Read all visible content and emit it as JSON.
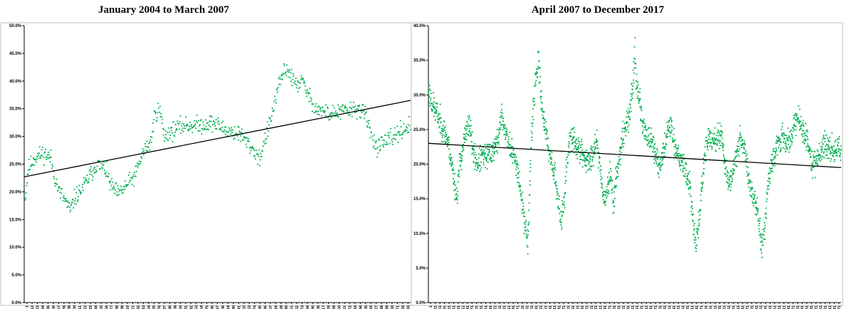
{
  "chart_data": [
    {
      "type": "scatter",
      "title": "January 2004 to March 2007",
      "point_color": "#00b050",
      "trendline_color": "#000000",
      "y_ticks": [
        "0.0%",
        "5.0%",
        "10.0%",
        "15.0%",
        "20.0%",
        "25.0%",
        "30.0%",
        "35.0%",
        "40.0%",
        "45.0%",
        "50.0%"
      ],
      "ylim": [
        0,
        50
      ],
      "grid": false,
      "x_count": 800,
      "x_ticks": [
        "1",
        "12",
        "23",
        "34",
        "45",
        "56",
        "67",
        "78",
        "89",
        "100",
        "111",
        "122",
        "133",
        "144",
        "155",
        "166",
        "177",
        "188",
        "199",
        "210",
        "221",
        "232",
        "243",
        "254",
        "265",
        "276",
        "287",
        "298",
        "309",
        "320",
        "331",
        "342",
        "353",
        "364",
        "375",
        "386",
        "397",
        "408",
        "419",
        "430",
        "441",
        "452",
        "463",
        "474",
        "485",
        "496",
        "507",
        "518",
        "529",
        "540",
        "551",
        "562",
        "573",
        "584",
        "595",
        "606",
        "617",
        "628",
        "639",
        "650",
        "661",
        "672",
        "683",
        "694",
        "705",
        "716",
        "727",
        "738",
        "749",
        "760",
        "771",
        "782",
        "793"
      ],
      "trendline": {
        "start": 22.7,
        "end": 36.5
      },
      "profile": [
        [
          0,
          20
        ],
        [
          3,
          19.2
        ],
        [
          8,
          24
        ],
        [
          20,
          26
        ],
        [
          40,
          27
        ],
        [
          55,
          26
        ],
        [
          62,
          23
        ],
        [
          72,
          20
        ],
        [
          85,
          18.5
        ],
        [
          95,
          16.5
        ],
        [
          105,
          19
        ],
        [
          115,
          20
        ],
        [
          130,
          22
        ],
        [
          150,
          25
        ],
        [
          168,
          24
        ],
        [
          180,
          21
        ],
        [
          195,
          19.5
        ],
        [
          210,
          21
        ],
        [
          230,
          23
        ],
        [
          245,
          27
        ],
        [
          262,
          29
        ],
        [
          270,
          34
        ],
        [
          280,
          35
        ],
        [
          290,
          30
        ],
        [
          305,
          31
        ],
        [
          330,
          32
        ],
        [
          360,
          32
        ],
        [
          390,
          32.5
        ],
        [
          420,
          31
        ],
        [
          445,
          30.5
        ],
        [
          470,
          28
        ],
        [
          487,
          26
        ],
        [
          500,
          30
        ],
        [
          510,
          33
        ],
        [
          520,
          37
        ],
        [
          530,
          40
        ],
        [
          538,
          42
        ],
        [
          548,
          42
        ],
        [
          555,
          40
        ],
        [
          565,
          39.5
        ],
        [
          575,
          40
        ],
        [
          590,
          37
        ],
        [
          605,
          35
        ],
        [
          630,
          34
        ],
        [
          660,
          34.5
        ],
        [
          690,
          35
        ],
        [
          705,
          34
        ],
        [
          715,
          31
        ],
        [
          730,
          28
        ],
        [
          750,
          29
        ],
        [
          770,
          30.5
        ],
        [
          800,
          32
        ]
      ],
      "noise": 1.1,
      "seed": 11
    },
    {
      "type": "scatter",
      "title": "April 2007 to December 2017",
      "point_color": "#00b050",
      "trendline_color": "#000000",
      "y_ticks": [
        "0.0%",
        "5.0%",
        "10.0%",
        "15.0%",
        "20.0%",
        "25.0%",
        "30.0%",
        "35.0%",
        "40.0%"
      ],
      "ylim": [
        0,
        40
      ],
      "grid": false,
      "x_count": 2700,
      "x_ticks": [
        "1",
        "31",
        "61",
        "91",
        "121",
        "151",
        "181",
        "211",
        "241",
        "271",
        "301",
        "331",
        "361",
        "391",
        "421",
        "451",
        "481",
        "511",
        "541",
        "571",
        "601",
        "631",
        "661",
        "691",
        "721",
        "751",
        "781",
        "811",
        "841",
        "871",
        "901",
        "931",
        "961",
        "991",
        "1021",
        "1051",
        "1081",
        "1111",
        "1141",
        "1171",
        "1201",
        "1231",
        "1261",
        "1291",
        "1321",
        "1351",
        "1381",
        "1411",
        "1441",
        "1471",
        "1501",
        "1531",
        "1561",
        "1591",
        "1621",
        "1651",
        "1681",
        "1711",
        "1741",
        "1771",
        "1801",
        "1831",
        "1861",
        "1891",
        "1921",
        "1951",
        "1981",
        "2011",
        "2041",
        "2071",
        "2101",
        "2131",
        "2161",
        "2191",
        "2221",
        "2251",
        "2281",
        "2311",
        "2341",
        "2371",
        "2401",
        "2431",
        "2461",
        "2491",
        "2521",
        "2551",
        "2581",
        "2611",
        "2641",
        "2671"
      ],
      "trendline": {
        "start": 23.0,
        "end": 19.5
      },
      "profile": [
        [
          0,
          31
        ],
        [
          20,
          29
        ],
        [
          60,
          27
        ],
        [
          100,
          25
        ],
        [
          130,
          23
        ],
        [
          160,
          19
        ],
        [
          185,
          15
        ],
        [
          205,
          20
        ],
        [
          240,
          24
        ],
        [
          270,
          26
        ],
        [
          290,
          22
        ],
        [
          320,
          20
        ],
        [
          350,
          21
        ],
        [
          380,
          21
        ],
        [
          420,
          22
        ],
        [
          450,
          23
        ],
        [
          480,
          27
        ],
        [
          500,
          25
        ],
        [
          540,
          22
        ],
        [
          580,
          20
        ],
        [
          610,
          15
        ],
        [
          635,
          11
        ],
        [
          650,
          8.5
        ],
        [
          668,
          20
        ],
        [
          685,
          28
        ],
        [
          705,
          33
        ],
        [
          720,
          34.5
        ],
        [
          740,
          29
        ],
        [
          770,
          24
        ],
        [
          800,
          21
        ],
        [
          830,
          18
        ],
        [
          850,
          14
        ],
        [
          870,
          12
        ],
        [
          885,
          14
        ],
        [
          905,
          20
        ],
        [
          930,
          24
        ],
        [
          960,
          23
        ],
        [
          990,
          22
        ],
        [
          1020,
          21
        ],
        [
          1050,
          20
        ],
        [
          1080,
          22
        ],
        [
          1100,
          24
        ],
        [
          1130,
          18
        ],
        [
          1150,
          15
        ],
        [
          1170,
          16
        ],
        [
          1195,
          19
        ],
        [
          1210,
          14
        ],
        [
          1240,
          20
        ],
        [
          1270,
          24
        ],
        [
          1300,
          26
        ],
        [
          1320,
          28
        ],
        [
          1340,
          32
        ],
        [
          1352,
          37
        ],
        [
          1360,
          31
        ],
        [
          1375,
          30
        ],
        [
          1400,
          26
        ],
        [
          1430,
          24
        ],
        [
          1460,
          23
        ],
        [
          1490,
          21
        ],
        [
          1510,
          19
        ],
        [
          1530,
          21
        ],
        [
          1550,
          23
        ],
        [
          1570,
          26
        ],
        [
          1590,
          25
        ],
        [
          1620,
          22
        ],
        [
          1650,
          21
        ],
        [
          1680,
          19
        ],
        [
          1710,
          17
        ],
        [
          1730,
          12
        ],
        [
          1750,
          8
        ],
        [
          1770,
          12
        ],
        [
          1800,
          20
        ],
        [
          1830,
          24
        ],
        [
          1860,
          23
        ],
        [
          1890,
          24
        ],
        [
          1920,
          24
        ],
        [
          1940,
          20
        ],
        [
          1960,
          17
        ],
        [
          1980,
          18
        ],
        [
          2010,
          21
        ],
        [
          2040,
          24
        ],
        [
          2070,
          22
        ],
        [
          2100,
          17
        ],
        [
          2130,
          15
        ],
        [
          2160,
          12
        ],
        [
          2180,
          8
        ],
        [
          2200,
          11
        ],
        [
          2220,
          17
        ],
        [
          2250,
          21
        ],
        [
          2280,
          23
        ],
        [
          2310,
          24
        ],
        [
          2340,
          23
        ],
        [
          2370,
          24
        ],
        [
          2400,
          26
        ],
        [
          2420,
          26.5
        ],
        [
          2450,
          25
        ],
        [
          2480,
          23
        ],
        [
          2510,
          20
        ],
        [
          2540,
          21
        ],
        [
          2570,
          22
        ],
        [
          2600,
          23
        ],
        [
          2640,
          22
        ],
        [
          2700,
          22
        ]
      ],
      "noise": 1.3,
      "seed": 23
    }
  ]
}
